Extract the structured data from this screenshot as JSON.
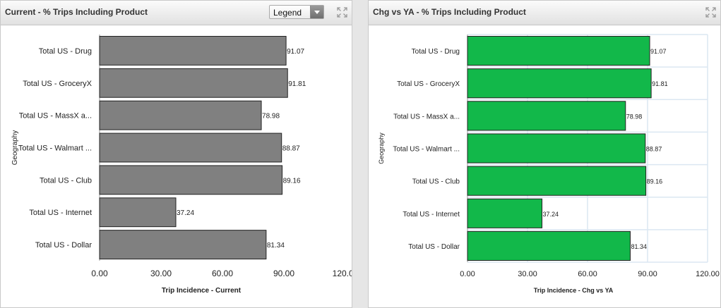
{
  "panels": [
    {
      "title": "Current - % Trips Including Product",
      "has_legend": true,
      "legend_label": "Legend"
    },
    {
      "title": "Chg vs YA - % Trips Including Product",
      "has_legend": false
    }
  ],
  "chart_data": [
    {
      "type": "bar",
      "orientation": "horizontal",
      "categories": [
        "Total US - Drug",
        "Total US - GroceryX",
        "Total US - MassX a...",
        "Total US - Walmart ...",
        "Total US - Club",
        "Total US - Internet",
        "Total US - Dollar"
      ],
      "values": [
        91.07,
        91.81,
        78.98,
        88.87,
        89.16,
        37.24,
        81.34
      ],
      "value_labels": [
        "91.07",
        "91.81",
        "78.98",
        "88.87",
        "89.16",
        "37.24",
        "81.34"
      ],
      "xlabel": "Trip Incidence - Current",
      "ylabel": "Geography",
      "xlim": [
        0,
        120
      ],
      "xticks": [
        "0.00",
        "30.00",
        "60.00",
        "90.00",
        "120.00"
      ],
      "grid": false,
      "bar_color": "#808080"
    },
    {
      "type": "bar",
      "orientation": "horizontal",
      "categories": [
        "Total US - Drug",
        "Total US - GroceryX",
        "Total US - MassX a...",
        "Total US - Walmart ...",
        "Total US - Club",
        "Total US - Internet",
        "Total US - Dollar"
      ],
      "values": [
        91.07,
        91.81,
        78.98,
        88.87,
        89.16,
        37.24,
        81.34
      ],
      "value_labels": [
        "91.07",
        "91.81",
        "78.98",
        "88.87",
        "89.16",
        "37.24",
        "81.34"
      ],
      "xlabel": "Trip Incidence - Chg vs YA",
      "ylabel": "Geography",
      "xlim": [
        0,
        120
      ],
      "xticks": [
        "0.00",
        "30.00",
        "60.00",
        "90.00",
        "120.00"
      ],
      "grid": true,
      "bar_color": "#12b84a"
    }
  ]
}
